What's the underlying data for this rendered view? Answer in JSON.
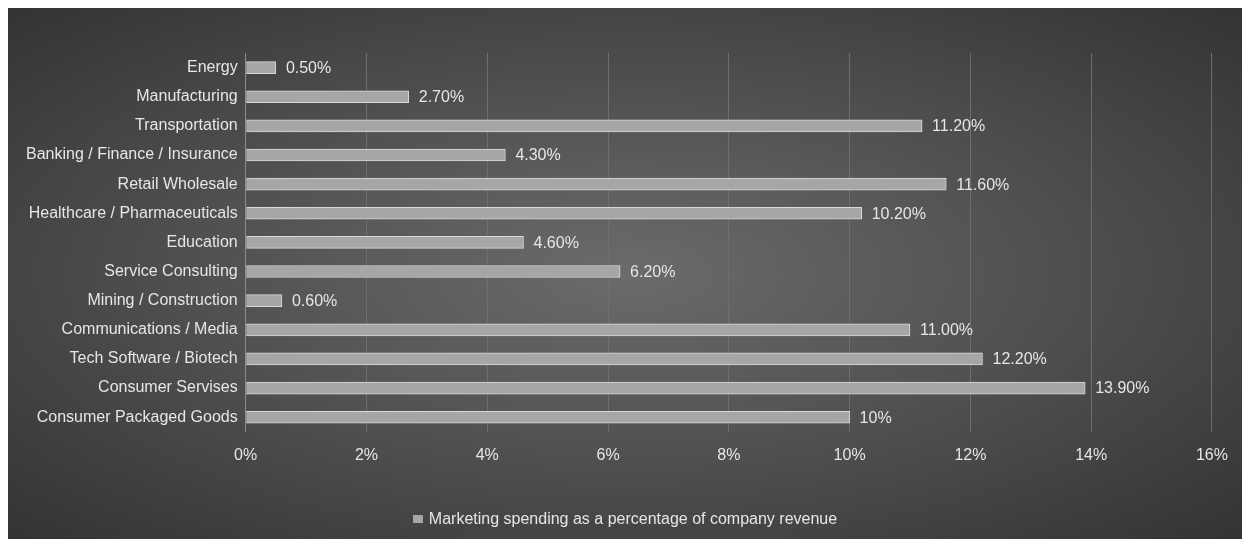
{
  "chart_data": {
    "type": "bar",
    "orientation": "horizontal",
    "categories": [
      "Energy",
      "Manufacturing",
      "Transportation",
      "Banking / Finance / Insurance",
      "Retail Wholesale",
      "Healthcare / Pharmaceuticals",
      "Education",
      "Service Consulting",
      "Mining / Construction",
      "Communications / Media",
      "Tech Software / Biotech",
      "Consumer Servises",
      "Consumer Packaged Goods"
    ],
    "series": [
      {
        "name": "Marketing spending as a percentage of company revenue",
        "color": "#a6a6a6",
        "values": [
          0.5,
          2.7,
          11.2,
          4.3,
          11.6,
          10.2,
          4.6,
          6.2,
          0.6,
          11.0,
          12.2,
          13.9,
          10
        ],
        "value_labels": [
          "0.50%",
          "2.70%",
          "11.20%",
          "4.30%",
          "11.60%",
          "10.20%",
          "4.60%",
          "6.20%",
          "0.60%",
          "11.00%",
          "12.20%",
          "13.90%",
          "10%"
        ]
      }
    ],
    "xlim": [
      0,
      16
    ],
    "xticks": [
      {
        "value": 0,
        "label": "0%"
      },
      {
        "value": 2,
        "label": "2%"
      },
      {
        "value": 4,
        "label": "4%"
      },
      {
        "value": 6,
        "label": "6%"
      },
      {
        "value": 8,
        "label": "8%"
      },
      {
        "value": 10,
        "label": "10%"
      },
      {
        "value": 12,
        "label": "12%"
      },
      {
        "value": 14,
        "label": "14%"
      },
      {
        "value": 16,
        "label": "16%"
      }
    ],
    "grid": "x",
    "legend": "bottom"
  }
}
